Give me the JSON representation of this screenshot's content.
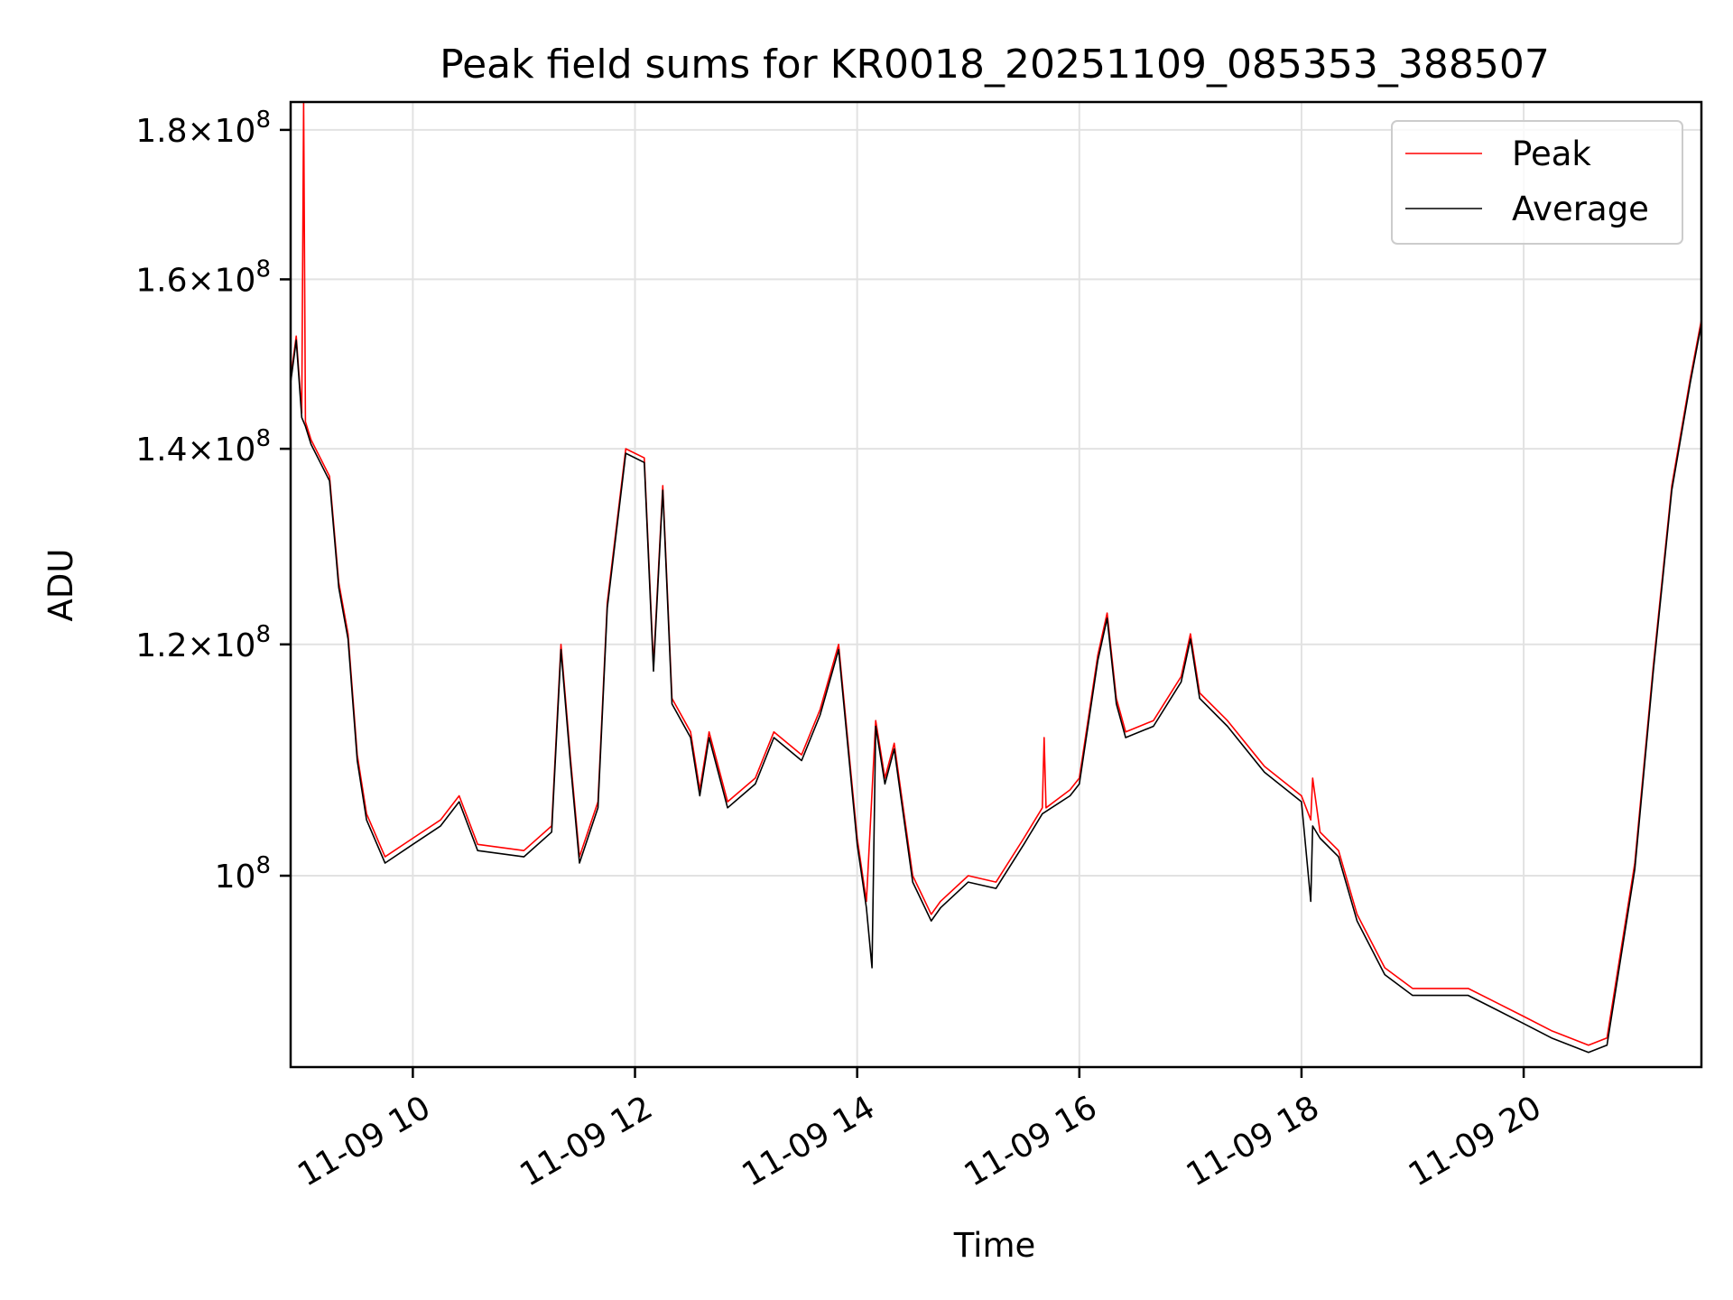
{
  "chart_data": {
    "type": "line",
    "title": "Peak field sums for KR0018_20251109_085353_388507",
    "xlabel": "Time",
    "ylabel": "ADU",
    "xlim": [
      "2025-11-09 08:54",
      "2025-11-09 21:36"
    ],
    "ylim": [
      86000000,
      184000000
    ],
    "y_scale": "log",
    "grid": true,
    "legend_position": "top-right",
    "x_ticks": [
      "11-09 10",
      "11-09 12",
      "11-09 14",
      "11-09 16",
      "11-09 18",
      "11-09 20"
    ],
    "x_tick_times": [
      "2025-11-09 10:00",
      "2025-11-09 12:00",
      "2025-11-09 14:00",
      "2025-11-09 16:00",
      "2025-11-09 18:00",
      "2025-11-09 20:00"
    ],
    "y_ticks": [
      {
        "value": 100000000,
        "mantissa": "",
        "exponent": "8"
      },
      {
        "value": 120000000,
        "mantissa": "1.2",
        "exponent": "8"
      },
      {
        "value": 140000000,
        "mantissa": "1.4",
        "exponent": "8"
      },
      {
        "value": 160000000,
        "mantissa": "1.6",
        "exponent": "8"
      },
      {
        "value": 180000000,
        "mantissa": "1.8",
        "exponent": "8"
      }
    ],
    "series": [
      {
        "name": "Peak",
        "color": "#ff0000",
        "x": [
          "2025-11-09 08:54",
          "2025-11-09 08:57",
          "2025-11-09 09:00",
          "2025-11-09 09:01",
          "2025-11-09 09:02",
          "2025-11-09 09:05",
          "2025-11-09 09:10",
          "2025-11-09 09:15",
          "2025-11-09 09:20",
          "2025-11-09 09:25",
          "2025-11-09 09:30",
          "2025-11-09 09:35",
          "2025-11-09 09:45",
          "2025-11-09 10:00",
          "2025-11-09 10:15",
          "2025-11-09 10:25",
          "2025-11-09 10:35",
          "2025-11-09 11:00",
          "2025-11-09 11:15",
          "2025-11-09 11:20",
          "2025-11-09 11:25",
          "2025-11-09 11:30",
          "2025-11-09 11:40",
          "2025-11-09 11:45",
          "2025-11-09 11:55",
          "2025-11-09 12:05",
          "2025-11-09 12:10",
          "2025-11-09 12:15",
          "2025-11-09 12:20",
          "2025-11-09 12:30",
          "2025-11-09 12:35",
          "2025-11-09 12:40",
          "2025-11-09 12:50",
          "2025-11-09 13:05",
          "2025-11-09 13:15",
          "2025-11-09 13:30",
          "2025-11-09 13:40",
          "2025-11-09 13:50",
          "2025-11-09 14:00",
          "2025-11-09 14:05",
          "2025-11-09 14:10",
          "2025-11-09 14:15",
          "2025-11-09 14:20",
          "2025-11-09 14:30",
          "2025-11-09 14:40",
          "2025-11-09 14:45",
          "2025-11-09 15:00",
          "2025-11-09 15:15",
          "2025-11-09 15:30",
          "2025-11-09 15:40",
          "2025-11-09 15:41",
          "2025-11-09 15:42",
          "2025-11-09 15:55",
          "2025-11-09 16:00",
          "2025-11-09 16:10",
          "2025-11-09 16:15",
          "2025-11-09 16:20",
          "2025-11-09 16:25",
          "2025-11-09 16:40",
          "2025-11-09 16:55",
          "2025-11-09 17:00",
          "2025-11-09 17:05",
          "2025-11-09 17:20",
          "2025-11-09 17:40",
          "2025-11-09 18:00",
          "2025-11-09 18:05",
          "2025-11-09 18:06",
          "2025-11-09 18:10",
          "2025-11-09 18:20",
          "2025-11-09 18:30",
          "2025-11-09 18:45",
          "2025-11-09 19:00",
          "2025-11-09 19:30",
          "2025-11-09 19:45",
          "2025-11-09 20:00",
          "2025-11-09 20:15",
          "2025-11-09 20:35",
          "2025-11-09 20:45",
          "2025-11-09 21:00",
          "2025-11-09 21:10",
          "2025-11-09 21:20",
          "2025-11-09 21:30",
          "2025-11-09 21:36"
        ],
        "y": [
          148000000,
          153000000,
          144000000,
          184000000,
          143000000,
          141000000,
          139000000,
          137000000,
          126000000,
          121000000,
          110000000,
          105000000,
          101500000,
          103000000,
          104500000,
          106500000,
          102500000,
          102000000,
          104000000,
          120000000,
          110000000,
          101500000,
          106000000,
          124000000,
          140000000,
          139000000,
          118000000,
          136000000,
          115000000,
          112000000,
          107000000,
          112000000,
          106000000,
          108000000,
          112000000,
          110000000,
          114000000,
          120000000,
          103000000,
          98000000,
          113000000,
          108000000,
          111000000,
          100000000,
          97000000,
          98000000,
          100000000,
          99500000,
          103000000,
          105500000,
          111500000,
          105500000,
          107000000,
          108000000,
          119000000,
          123000000,
          115000000,
          112000000,
          113000000,
          117000000,
          121000000,
          115500000,
          113000000,
          109000000,
          106500000,
          104500000,
          108000000,
          103500000,
          102000000,
          97000000,
          93000000,
          91500000,
          91500000,
          90500000,
          89500000,
          88500000,
          87500000,
          88000000,
          101000000,
          118000000,
          136000000,
          148000000,
          155000000
        ]
      },
      {
        "name": "Average",
        "color": "#000000",
        "x": [
          "2025-11-09 08:54",
          "2025-11-09 08:57",
          "2025-11-09 09:00",
          "2025-11-09 09:02",
          "2025-11-09 09:05",
          "2025-11-09 09:10",
          "2025-11-09 09:15",
          "2025-11-09 09:20",
          "2025-11-09 09:25",
          "2025-11-09 09:30",
          "2025-11-09 09:35",
          "2025-11-09 09:45",
          "2025-11-09 10:00",
          "2025-11-09 10:15",
          "2025-11-09 10:25",
          "2025-11-09 10:35",
          "2025-11-09 11:00",
          "2025-11-09 11:15",
          "2025-11-09 11:20",
          "2025-11-09 11:25",
          "2025-11-09 11:30",
          "2025-11-09 11:40",
          "2025-11-09 11:45",
          "2025-11-09 11:55",
          "2025-11-09 12:05",
          "2025-11-09 12:10",
          "2025-11-09 12:15",
          "2025-11-09 12:20",
          "2025-11-09 12:30",
          "2025-11-09 12:35",
          "2025-11-09 12:40",
          "2025-11-09 12:50",
          "2025-11-09 13:05",
          "2025-11-09 13:15",
          "2025-11-09 13:30",
          "2025-11-09 13:40",
          "2025-11-09 13:50",
          "2025-11-09 14:00",
          "2025-11-09 14:05",
          "2025-11-09 14:08",
          "2025-11-09 14:10",
          "2025-11-09 14:15",
          "2025-11-09 14:20",
          "2025-11-09 14:30",
          "2025-11-09 14:40",
          "2025-11-09 14:45",
          "2025-11-09 15:00",
          "2025-11-09 15:15",
          "2025-11-09 15:30",
          "2025-11-09 15:40",
          "2025-11-09 15:55",
          "2025-11-09 16:00",
          "2025-11-09 16:10",
          "2025-11-09 16:15",
          "2025-11-09 16:20",
          "2025-11-09 16:25",
          "2025-11-09 16:40",
          "2025-11-09 16:55",
          "2025-11-09 17:00",
          "2025-11-09 17:05",
          "2025-11-09 17:20",
          "2025-11-09 17:40",
          "2025-11-09 18:00",
          "2025-11-09 18:05",
          "2025-11-09 18:06",
          "2025-11-09 18:10",
          "2025-11-09 18:20",
          "2025-11-09 18:30",
          "2025-11-09 18:45",
          "2025-11-09 19:00",
          "2025-11-09 19:30",
          "2025-11-09 19:45",
          "2025-11-09 20:00",
          "2025-11-09 20:15",
          "2025-11-09 20:35",
          "2025-11-09 20:45",
          "2025-11-09 21:00",
          "2025-11-09 21:10",
          "2025-11-09 21:20",
          "2025-11-09 21:30",
          "2025-11-09 21:36"
        ],
        "y": [
          147500000,
          152500000,
          143500000,
          142500000,
          140500000,
          138500000,
          136500000,
          125500000,
          120500000,
          109500000,
          104500000,
          101000000,
          102500000,
          104000000,
          106000000,
          102000000,
          101500000,
          103500000,
          119500000,
          109500000,
          101000000,
          105500000,
          123500000,
          139500000,
          138500000,
          117500000,
          135500000,
          114500000,
          111500000,
          106500000,
          111500000,
          105500000,
          107500000,
          111500000,
          109500000,
          113500000,
          119500000,
          102500000,
          97500000,
          93000000,
          112500000,
          107500000,
          110500000,
          99500000,
          96500000,
          97500000,
          99500000,
          99000000,
          102500000,
          105000000,
          106500000,
          107500000,
          118500000,
          122500000,
          114500000,
          111500000,
          112500000,
          116500000,
          120500000,
          115000000,
          112500000,
          108500000,
          106000000,
          98000000,
          104000000,
          103000000,
          101500000,
          96500000,
          92500000,
          91000000,
          91000000,
          90000000,
          89000000,
          88000000,
          87000000,
          87500000,
          100500000,
          117500000,
          135500000,
          147500000,
          154500000
        ]
      }
    ]
  }
}
